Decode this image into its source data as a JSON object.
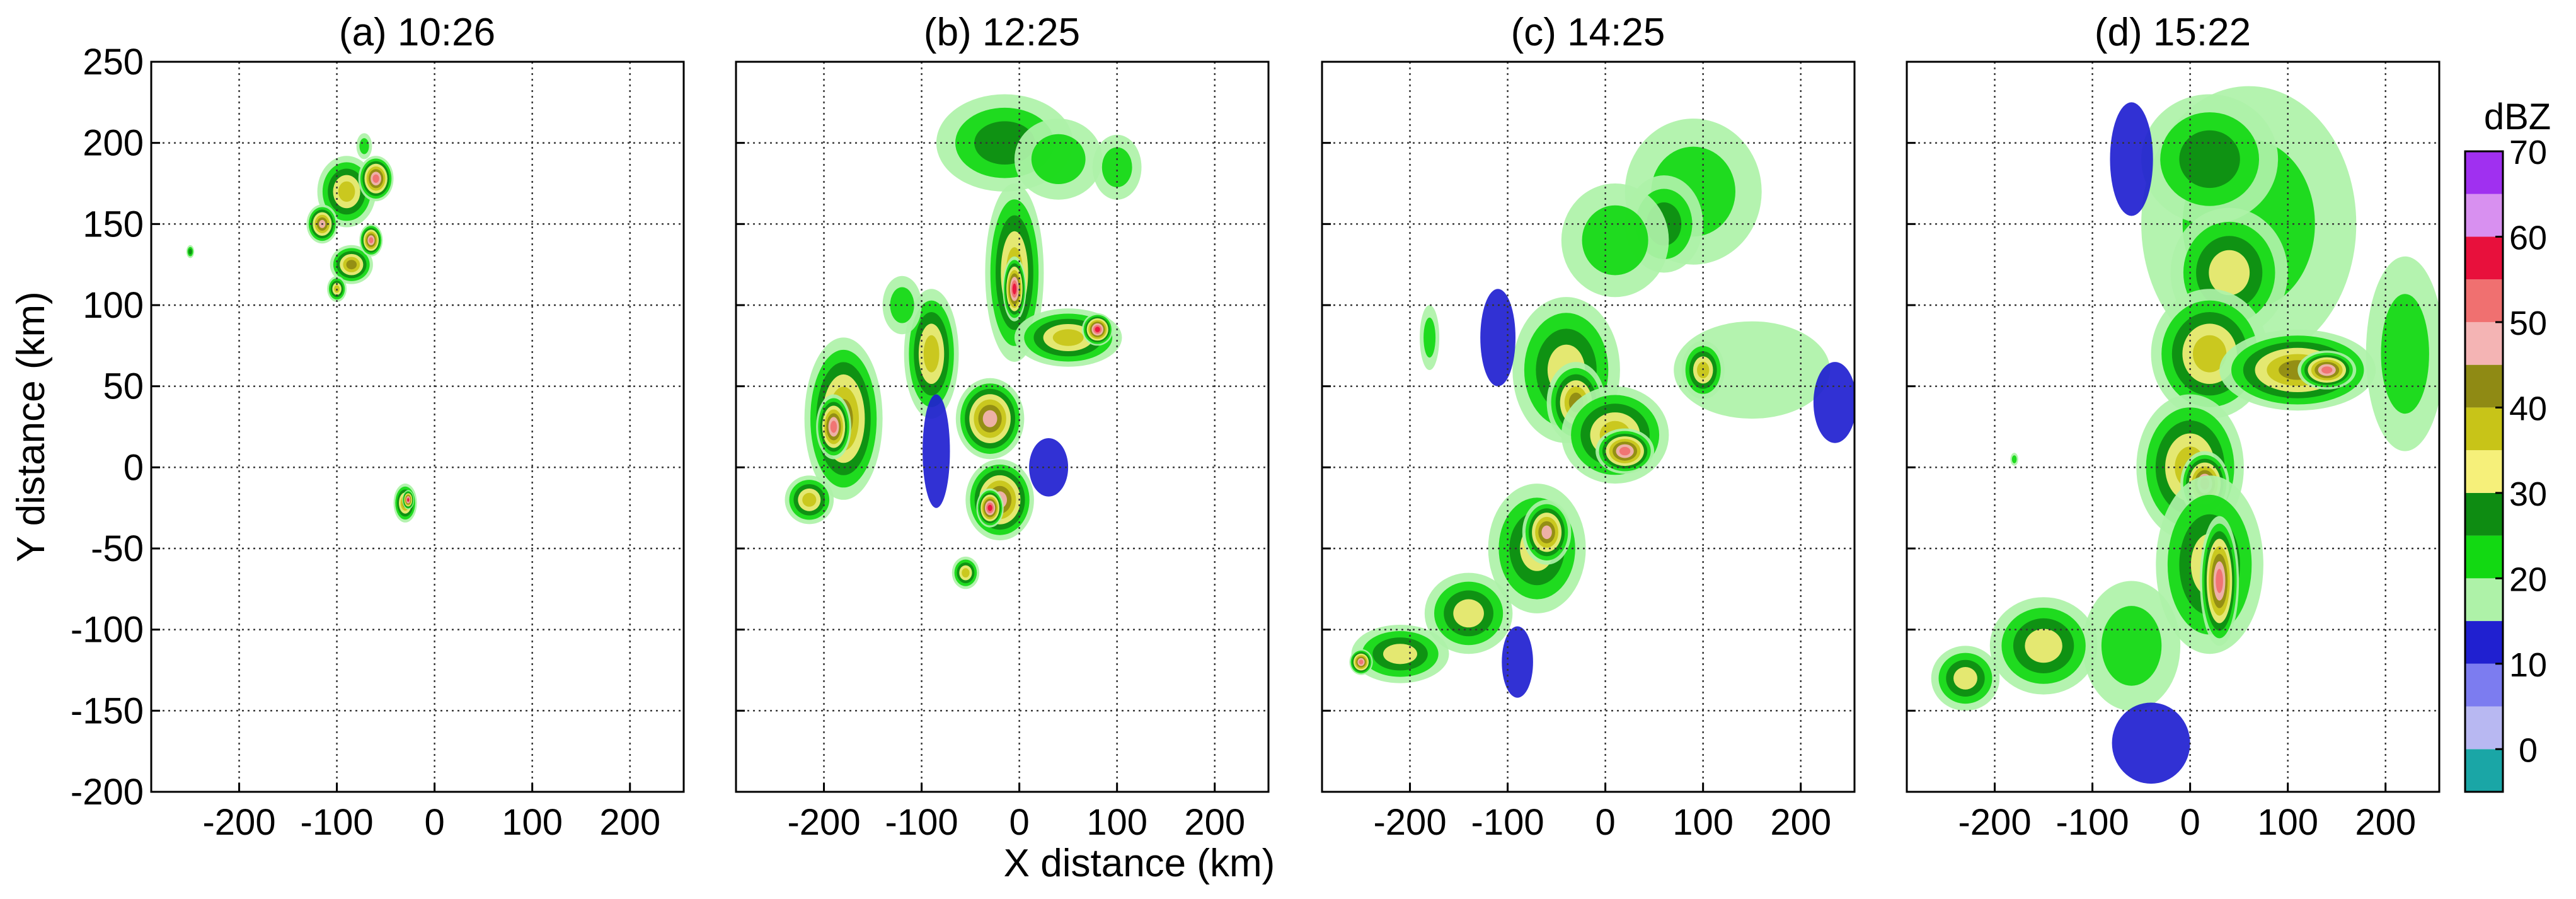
{
  "chart_data": [
    {
      "type": "heatmap",
      "panel_title": "(a) 10:26",
      "x_tick_labels": [
        "-200",
        "-100",
        "0",
        "100",
        "200"
      ],
      "y_tick_labels": [
        "250",
        "200",
        "150",
        "100",
        "50",
        "0",
        "-50",
        "-100",
        "-150",
        "-200"
      ],
      "xlim": [
        -290,
        255
      ],
      "ylim": [
        -200,
        250
      ],
      "grid": true,
      "echo_cells": [
        {
          "x": -90,
          "y": 170,
          "rx": 30,
          "ry": 22,
          "dbz": 38
        },
        {
          "x": -60,
          "y": 178,
          "rx": 18,
          "ry": 14,
          "dbz": 50
        },
        {
          "x": -115,
          "y": 150,
          "rx": 16,
          "ry": 12,
          "dbz": 45
        },
        {
          "x": -85,
          "y": 125,
          "rx": 22,
          "ry": 12,
          "dbz": 42
        },
        {
          "x": -65,
          "y": 140,
          "rx": 12,
          "ry": 10,
          "dbz": 52
        },
        {
          "x": -100,
          "y": 110,
          "rx": 10,
          "ry": 8,
          "dbz": 35
        },
        {
          "x": -72,
          "y": 198,
          "rx": 8,
          "ry": 8,
          "dbz": 22
        },
        {
          "x": -30,
          "y": -22,
          "rx": 12,
          "ry": 12,
          "dbz": 40
        },
        {
          "x": -27,
          "y": -20,
          "rx": 6,
          "ry": 6,
          "dbz": 55
        },
        {
          "x": -250,
          "y": 133,
          "rx": 4,
          "ry": 4,
          "dbz": 25
        }
      ]
    },
    {
      "type": "heatmap",
      "panel_title": "(b) 12:25",
      "x_tick_labels": [
        "-200",
        "-100",
        "0",
        "100",
        "200"
      ],
      "y_tick_labels": [
        "250",
        "200",
        "150",
        "100",
        "50",
        "0",
        "-50",
        "-100",
        "-150",
        "-200"
      ],
      "xlim": [
        -290,
        255
      ],
      "ylim": [
        -200,
        250
      ],
      "grid": true,
      "echo_cells": [
        {
          "x": -15,
          "y": 200,
          "rx": 70,
          "ry": 30,
          "dbz": 28
        },
        {
          "x": 40,
          "y": 190,
          "rx": 45,
          "ry": 25,
          "dbz": 22
        },
        {
          "x": 100,
          "y": 185,
          "rx": 25,
          "ry": 20,
          "dbz": 20
        },
        {
          "x": -5,
          "y": 120,
          "rx": 30,
          "ry": 55,
          "dbz": 35
        },
        {
          "x": -5,
          "y": 110,
          "rx": 12,
          "ry": 20,
          "dbz": 55
        },
        {
          "x": -90,
          "y": 70,
          "rx": 28,
          "ry": 40,
          "dbz": 38
        },
        {
          "x": -120,
          "y": 100,
          "rx": 20,
          "ry": 18,
          "dbz": 22
        },
        {
          "x": -180,
          "y": 30,
          "rx": 40,
          "ry": 50,
          "dbz": 40
        },
        {
          "x": -190,
          "y": 25,
          "rx": 18,
          "ry": 20,
          "dbz": 52
        },
        {
          "x": -215,
          "y": -20,
          "rx": 25,
          "ry": 15,
          "dbz": 36
        },
        {
          "x": -30,
          "y": 30,
          "rx": 35,
          "ry": 25,
          "dbz": 45
        },
        {
          "x": -20,
          "y": -20,
          "rx": 35,
          "ry": 25,
          "dbz": 45
        },
        {
          "x": -30,
          "y": -25,
          "rx": 14,
          "ry": 12,
          "dbz": 55
        },
        {
          "x": 50,
          "y": 80,
          "rx": 55,
          "ry": 18,
          "dbz": 38
        },
        {
          "x": 80,
          "y": 85,
          "rx": 16,
          "ry": 10,
          "dbz": 55
        },
        {
          "x": 30,
          "y": 0,
          "rx": 20,
          "ry": 18,
          "dbz": 12
        },
        {
          "x": -85,
          "y": 10,
          "rx": 14,
          "ry": 35,
          "dbz": 12
        },
        {
          "x": -55,
          "y": -65,
          "rx": 14,
          "ry": 10,
          "dbz": 38
        }
      ]
    },
    {
      "type": "heatmap",
      "panel_title": "(c) 14:25",
      "x_tick_labels": [
        "-200",
        "-100",
        "0",
        "100",
        "200"
      ],
      "y_tick_labels": [
        "250",
        "200",
        "150",
        "100",
        "50",
        "0",
        "-50",
        "-100",
        "-150",
        "-200"
      ],
      "xlim": [
        -290,
        255
      ],
      "ylim": [
        -200,
        250
      ],
      "grid": true,
      "echo_cells": [
        {
          "x": 90,
          "y": 170,
          "rx": 70,
          "ry": 45,
          "dbz": 22
        },
        {
          "x": 60,
          "y": 150,
          "rx": 40,
          "ry": 30,
          "dbz": 28
        },
        {
          "x": 10,
          "y": 140,
          "rx": 55,
          "ry": 35,
          "dbz": 24
        },
        {
          "x": -40,
          "y": 60,
          "rx": 55,
          "ry": 45,
          "dbz": 32
        },
        {
          "x": -30,
          "y": 40,
          "rx": 30,
          "ry": 25,
          "dbz": 40
        },
        {
          "x": 10,
          "y": 20,
          "rx": 55,
          "ry": 30,
          "dbz": 35
        },
        {
          "x": 20,
          "y": 10,
          "rx": 30,
          "ry": 14,
          "dbz": 50
        },
        {
          "x": -70,
          "y": -50,
          "rx": 50,
          "ry": 40,
          "dbz": 34
        },
        {
          "x": -60,
          "y": -40,
          "rx": 25,
          "ry": 20,
          "dbz": 45
        },
        {
          "x": -140,
          "y": -90,
          "rx": 45,
          "ry": 25,
          "dbz": 30
        },
        {
          "x": -210,
          "y": -115,
          "rx": 50,
          "ry": 18,
          "dbz": 34
        },
        {
          "x": -250,
          "y": -120,
          "rx": 12,
          "ry": 8,
          "dbz": 50
        },
        {
          "x": 150,
          "y": 60,
          "rx": 80,
          "ry": 30,
          "dbz": 18
        },
        {
          "x": 235,
          "y": 40,
          "rx": 22,
          "ry": 25,
          "dbz": 10
        },
        {
          "x": 100,
          "y": 60,
          "rx": 22,
          "ry": 18,
          "dbz": 38
        },
        {
          "x": -90,
          "y": -120,
          "rx": 16,
          "ry": 22,
          "dbz": 12
        },
        {
          "x": -110,
          "y": 80,
          "rx": 18,
          "ry": 30,
          "dbz": 14
        },
        {
          "x": -180,
          "y": 80,
          "rx": 10,
          "ry": 20,
          "dbz": 22
        }
      ]
    },
    {
      "type": "heatmap",
      "panel_title": "(d) 15:22",
      "x_tick_labels": [
        "-200",
        "-100",
        "0",
        "100",
        "200"
      ],
      "y_tick_labels": [
        "250",
        "200",
        "150",
        "100",
        "50",
        "0",
        "-50",
        "-100",
        "-150",
        "-200"
      ],
      "xlim": [
        -290,
        255
      ],
      "ylim": [
        -200,
        250
      ],
      "grid": true,
      "echo_cells": [
        {
          "x": 60,
          "y": 150,
          "rx": 110,
          "ry": 85,
          "dbz": 22
        },
        {
          "x": 20,
          "y": 190,
          "rx": 70,
          "ry": 40,
          "dbz": 25
        },
        {
          "x": 40,
          "y": 120,
          "rx": 60,
          "ry": 40,
          "dbz": 32
        },
        {
          "x": 20,
          "y": 70,
          "rx": 60,
          "ry": 40,
          "dbz": 35
        },
        {
          "x": 110,
          "y": 60,
          "rx": 80,
          "ry": 25,
          "dbz": 40
        },
        {
          "x": 140,
          "y": 60,
          "rx": 30,
          "ry": 12,
          "dbz": 52
        },
        {
          "x": 220,
          "y": 70,
          "rx": 40,
          "ry": 60,
          "dbz": 20
        },
        {
          "x": 0,
          "y": 0,
          "rx": 55,
          "ry": 45,
          "dbz": 36
        },
        {
          "x": 15,
          "y": -10,
          "rx": 25,
          "ry": 20,
          "dbz": 50
        },
        {
          "x": 20,
          "y": -60,
          "rx": 55,
          "ry": 55,
          "dbz": 34
        },
        {
          "x": 30,
          "y": -70,
          "rx": 20,
          "ry": 40,
          "dbz": 52
        },
        {
          "x": -60,
          "y": -110,
          "rx": 50,
          "ry": 40,
          "dbz": 24
        },
        {
          "x": -150,
          "y": -110,
          "rx": 55,
          "ry": 30,
          "dbz": 30
        },
        {
          "x": -230,
          "y": -130,
          "rx": 35,
          "ry": 20,
          "dbz": 34
        },
        {
          "x": -40,
          "y": -170,
          "rx": 40,
          "ry": 25,
          "dbz": 12
        },
        {
          "x": -60,
          "y": 190,
          "rx": 22,
          "ry": 35,
          "dbz": 12
        },
        {
          "x": -180,
          "y": 5,
          "rx": 4,
          "ry": 4,
          "dbz": 20
        }
      ]
    }
  ],
  "axes": {
    "xlabel": "X distance (km)",
    "ylabel": "Y distance (km)"
  },
  "colorbar": {
    "title": "dBZ",
    "tick_labels": [
      "70",
      "60",
      "50",
      "40",
      "30",
      "20",
      "10",
      "0"
    ],
    "tick_values": [
      70,
      60,
      50,
      40,
      30,
      20,
      10,
      0
    ],
    "range": [
      -5,
      70
    ],
    "step": 5,
    "colors": [
      "#1aa6a6",
      "#b8b8f2",
      "#7c7cf0",
      "#2020d0",
      "#aef2a8",
      "#12d912",
      "#0e8c12",
      "#f6f07a",
      "#c8c418",
      "#8f8a14",
      "#f4b4b4",
      "#f07070",
      "#e8103c",
      "#d890f0",
      "#a030f0"
    ]
  }
}
